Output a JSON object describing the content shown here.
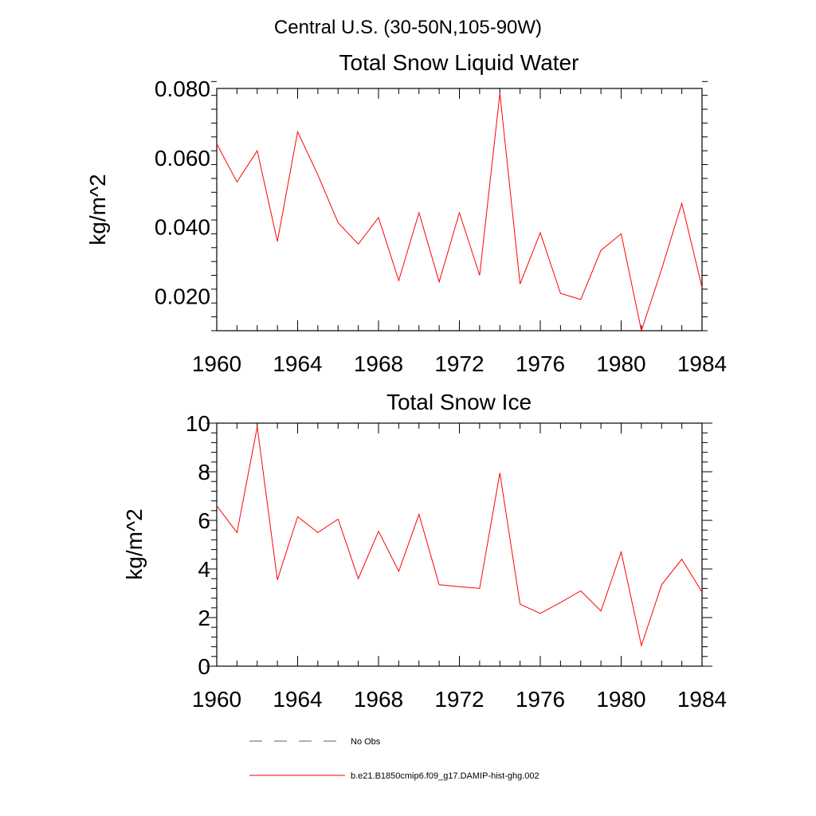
{
  "suptitle": "Central U.S. (30-50N,105-90W)",
  "chart_data": [
    {
      "type": "line",
      "title": "Total Snow Liquid Water",
      "xlabel": "",
      "ylabel": "kg/m^2",
      "xlim": [
        1960,
        1984
      ],
      "ylim": [
        0.01,
        0.08
      ],
      "x_ticks": [
        1960,
        1964,
        1968,
        1972,
        1976,
        1980,
        1984
      ],
      "x_tick_labels": [
        "1960",
        "1964",
        "1968",
        "1972",
        "1976",
        "1980",
        "1984"
      ],
      "y_ticks": [
        0.02,
        0.04,
        0.06,
        0.08
      ],
      "y_tick_labels": [
        "0.020",
        "0.040",
        "0.060",
        "0.080"
      ],
      "grid": false,
      "x": [
        1960,
        1961,
        1962,
        1963,
        1964,
        1965,
        1966,
        1967,
        1968,
        1969,
        1970,
        1971,
        1972,
        1973,
        1974,
        1975,
        1976,
        1977,
        1978,
        1979,
        1980,
        1981,
        1982,
        1983,
        1984
      ],
      "series": [
        {
          "name": "b.e21.B1850cmip6.f09_g17.DAMIP-hist-ghg.002",
          "color": "#ff0000",
          "values": [
            0.064,
            0.053,
            0.062,
            0.0358,
            0.0675,
            0.055,
            0.0412,
            0.035,
            0.0427,
            0.0245,
            0.0441,
            0.0241,
            0.0441,
            0.026,
            0.0786,
            0.0235,
            0.0383,
            0.0208,
            0.019,
            0.0332,
            0.038,
            0.01,
            0.0278,
            0.0468,
            0.0225
          ]
        }
      ]
    },
    {
      "type": "line",
      "title": "Total Snow Ice",
      "xlabel": "",
      "ylabel": "kg/m^2",
      "xlim": [
        1960,
        1984
      ],
      "ylim": [
        0,
        10
      ],
      "x_ticks": [
        1960,
        1964,
        1968,
        1972,
        1976,
        1980,
        1984
      ],
      "x_tick_labels": [
        "1960",
        "1964",
        "1968",
        "1972",
        "1976",
        "1980",
        "1984"
      ],
      "y_ticks": [
        0,
        2,
        4,
        6,
        8,
        10
      ],
      "y_tick_labels": [
        "0",
        "2",
        "4",
        "6",
        "8",
        "10"
      ],
      "grid": false,
      "x": [
        1960,
        1961,
        1962,
        1963,
        1964,
        1965,
        1966,
        1967,
        1968,
        1969,
        1970,
        1971,
        1972,
        1973,
        1974,
        1975,
        1976,
        1977,
        1978,
        1979,
        1980,
        1981,
        1982,
        1983,
        1984
      ],
      "series": [
        {
          "name": "b.e21.B1850cmip6.f09_g17.DAMIP-hist-ghg.002",
          "color": "#ff0000",
          "values": [
            6.6,
            5.5,
            9.85,
            3.55,
            6.15,
            5.5,
            6.05,
            3.6,
            5.55,
            3.9,
            6.25,
            3.35,
            3.27,
            3.2,
            7.95,
            2.55,
            2.17,
            2.62,
            3.1,
            2.27,
            4.7,
            0.85,
            3.35,
            4.4,
            3.05
          ]
        }
      ]
    }
  ],
  "legend": {
    "placement": "bottom",
    "entries": [
      {
        "label": "No Obs",
        "color": "#5a5a8a",
        "style": "dashed"
      },
      {
        "label": "b.e21.B1850cmip6.f09_g17.DAMIP-hist-ghg.002",
        "color": "#ff0000",
        "style": "solid"
      }
    ]
  }
}
